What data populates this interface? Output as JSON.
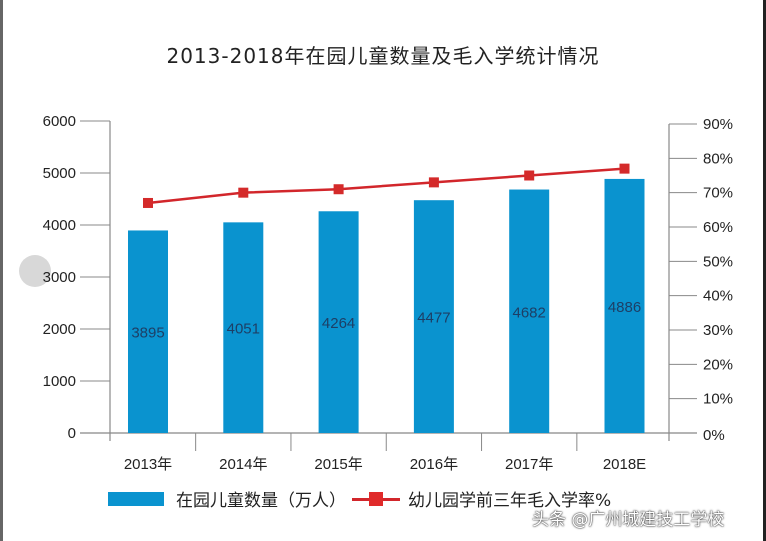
{
  "chart_data": {
    "type": "bar+line",
    "title": "2013-2018年在园儿童数量及毛入学统计情况",
    "categories": [
      "2013年",
      "2014年",
      "2015年",
      "2016年",
      "2017年",
      "2018E"
    ],
    "series": [
      {
        "name": "在园儿童数量（万人）",
        "type": "bar",
        "axis": "left",
        "color": "#0a93cf",
        "values": [
          3895,
          4051,
          4264,
          4477,
          4682,
          4886
        ]
      },
      {
        "name": "幼儿园学前三年毛入学率%",
        "type": "line",
        "axis": "right",
        "color": "#d2262b",
        "values": [
          67,
          70,
          71,
          73,
          75,
          77
        ]
      }
    ],
    "left_axis": {
      "ylim": [
        0,
        6000
      ],
      "ticks": [
        "0",
        "1000",
        "2000",
        "3000",
        "4000",
        "5000",
        "6000"
      ]
    },
    "right_axis": {
      "ylim": [
        0,
        90
      ],
      "ticks": [
        "0%",
        "10%",
        "20%",
        "30%",
        "40%",
        "50%",
        "60%",
        "70%",
        "80%",
        "90%"
      ]
    },
    "grid": false,
    "legend": "bottom"
  },
  "watermark": "头条 @广州城建技工学校"
}
